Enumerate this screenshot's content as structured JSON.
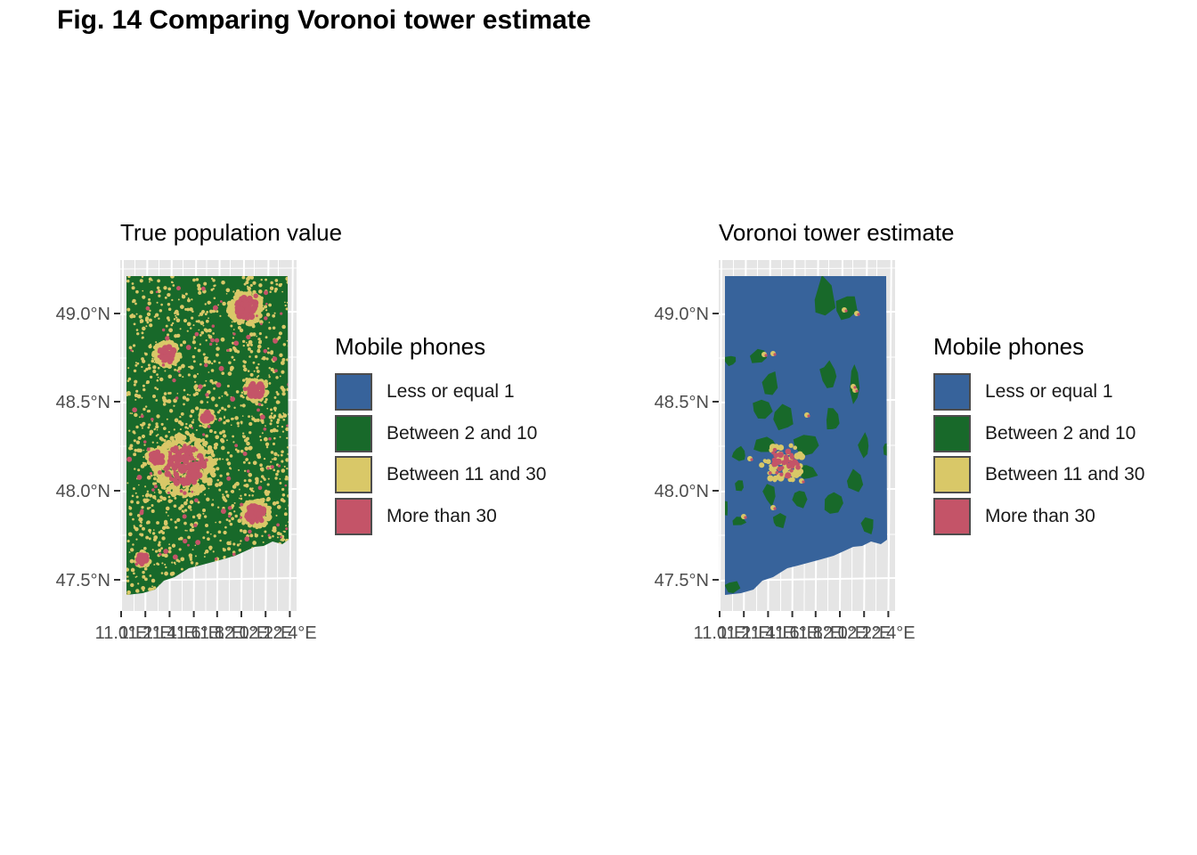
{
  "figure_title": "Fig. 14 Comparing Voronoi tower estimate",
  "panels": [
    {
      "title": "True population value",
      "base_fill_color": "#18692a"
    },
    {
      "title": "Voronoi tower estimate",
      "base_fill_color": "#37639b"
    }
  ],
  "legend": {
    "title": "Mobile phones",
    "items": [
      {
        "label": "Less or equal 1",
        "color": "#37639b"
      },
      {
        "label": "Between 2 and 10",
        "color": "#18692a"
      },
      {
        "label": "Between 11 and 30",
        "color": "#d9c868"
      },
      {
        "label": "More than 30",
        "color": "#c45468"
      }
    ]
  },
  "axes": {
    "y_ticks": [
      "49.0°N",
      "48.5°N",
      "48.0°N",
      "47.5°N"
    ],
    "x_ticks": [
      "11.0°E",
      "11.2°E",
      "11.4°E",
      "11.6°E",
      "11.8°E",
      "12.0°E",
      "12.2°E",
      "12.4°E"
    ],
    "panel_background": "#e5e5e5",
    "grid_color": "#ffffff"
  }
}
